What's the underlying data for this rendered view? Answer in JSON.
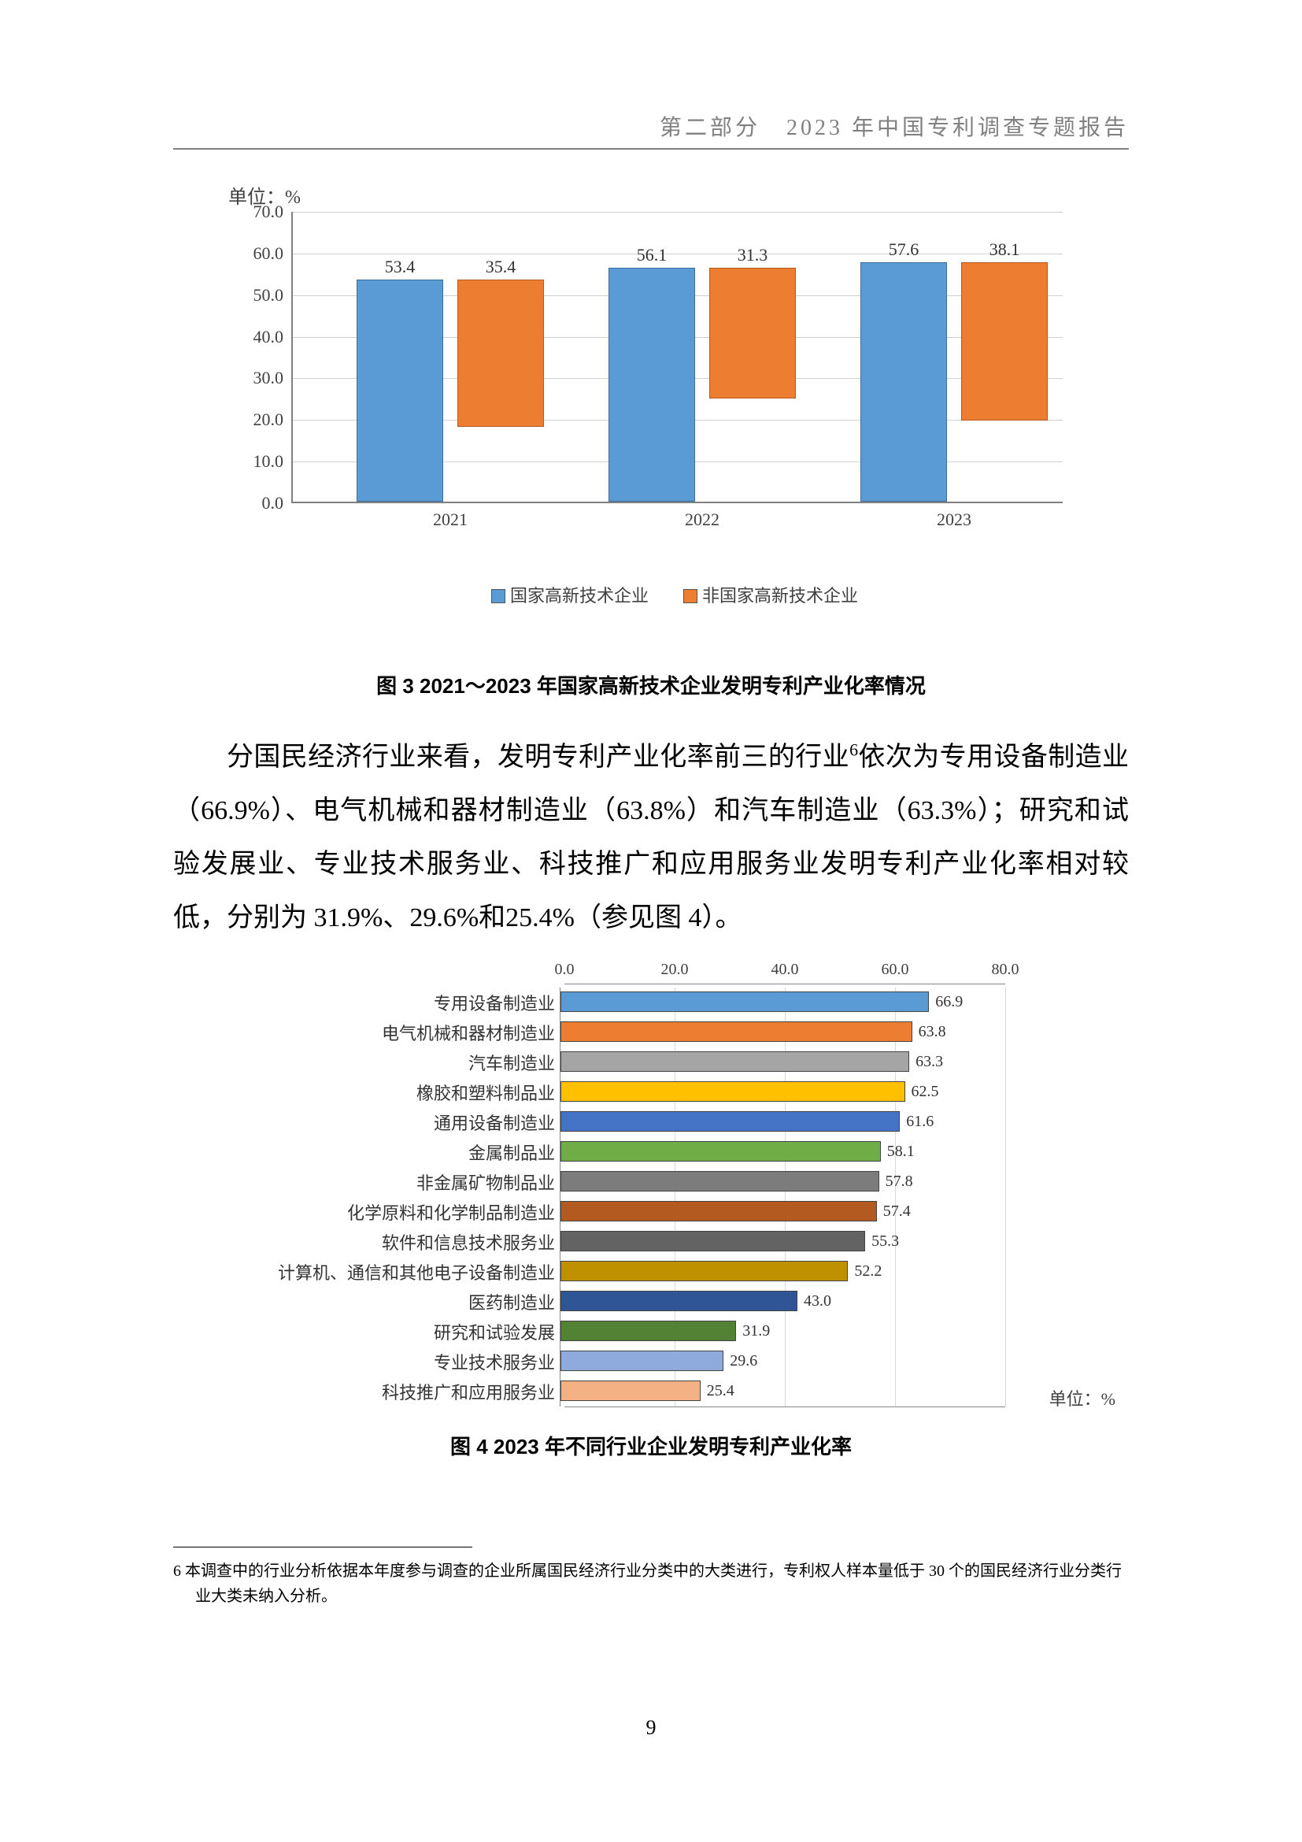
{
  "header": {
    "section": "第二部分",
    "title": "2023 年中国专利调查专题报告"
  },
  "chart1": {
    "type": "bar",
    "unit_label": "单位：%",
    "ylim": [
      0,
      70
    ],
    "ytick_step": 10.0,
    "yticks": [
      "0.0",
      "10.0",
      "20.0",
      "30.0",
      "40.0",
      "50.0",
      "60.0",
      "70.0"
    ],
    "categories": [
      "2021",
      "2022",
      "2023"
    ],
    "series": [
      {
        "name": "国家高新技术企业",
        "color": "#5b9bd5",
        "values": [
          53.4,
          56.1,
          57.6
        ]
      },
      {
        "name": "非国家高新技术企业",
        "color": "#ed7d31",
        "values": [
          35.4,
          31.3,
          38.1
        ]
      }
    ],
    "caption": "图 3  2021～2023 年国家高新技术企业发明专利产业化率情况"
  },
  "paragraph": {
    "text_before_sup": "分国民经济行业来看，发明专利产业化率前三的行业",
    "sup": "6",
    "text_after_sup": "依次为专用设备制造业（66.9%）、电气机械和器材制造业（63.8%）和汽车制造业（63.3%）；研究和试验发展业、专业技术服务业、科技推广和应用服务业发明专利产业化率相对较低，分别为 31.9%、29.6%和25.4%（参见图 4）。"
  },
  "chart2": {
    "type": "horizontal-bar",
    "xlim": [
      0,
      80
    ],
    "xtick_step": 20.0,
    "xticks": [
      "0.0",
      "20.0",
      "40.0",
      "60.0",
      "80.0"
    ],
    "unit_label": "单位：%",
    "caption": "图 4  2023 年不同行业企业发明专利产业化率",
    "rows": [
      {
        "label": "专用设备制造业",
        "value": 66.9,
        "color": "#5b9bd5"
      },
      {
        "label": "电气机械和器材制造业",
        "value": 63.8,
        "color": "#ed7d31"
      },
      {
        "label": "汽车制造业",
        "value": 63.3,
        "color": "#a5a5a5"
      },
      {
        "label": "橡胶和塑料制品业",
        "value": 62.5,
        "color": "#ffc000"
      },
      {
        "label": "通用设备制造业",
        "value": 61.6,
        "color": "#4472c4"
      },
      {
        "label": "金属制品业",
        "value": 58.1,
        "color": "#70ad47"
      },
      {
        "label": "非金属矿物制品业",
        "value": 57.8,
        "color": "#7c7c7c"
      },
      {
        "label": "化学原料和化学制品制造业",
        "value": 57.4,
        "color": "#b35a20"
      },
      {
        "label": "软件和信息技术服务业",
        "value": 55.3,
        "color": "#636363"
      },
      {
        "label": "计算机、通信和其他电子设备制造业",
        "value": 52.2,
        "color": "#bf9000"
      },
      {
        "label": "医药制造业",
        "value": 43.0,
        "color": "#2f5597"
      },
      {
        "label": "研究和试验发展",
        "value": 31.9,
        "color": "#548235"
      },
      {
        "label": "专业技术服务业",
        "value": 29.6,
        "color": "#8faadc"
      },
      {
        "label": "科技推广和应用服务业",
        "value": 25.4,
        "color": "#f4b183"
      }
    ]
  },
  "footnote": {
    "marker": "6",
    "text": "本调查中的行业分析依据本年度参与调查的企业所属国民经济行业分类中的大类进行，专利权人样本量低于 30 个的国民经济行业分类行业大类未纳入分析。"
  },
  "page_number": "9"
}
